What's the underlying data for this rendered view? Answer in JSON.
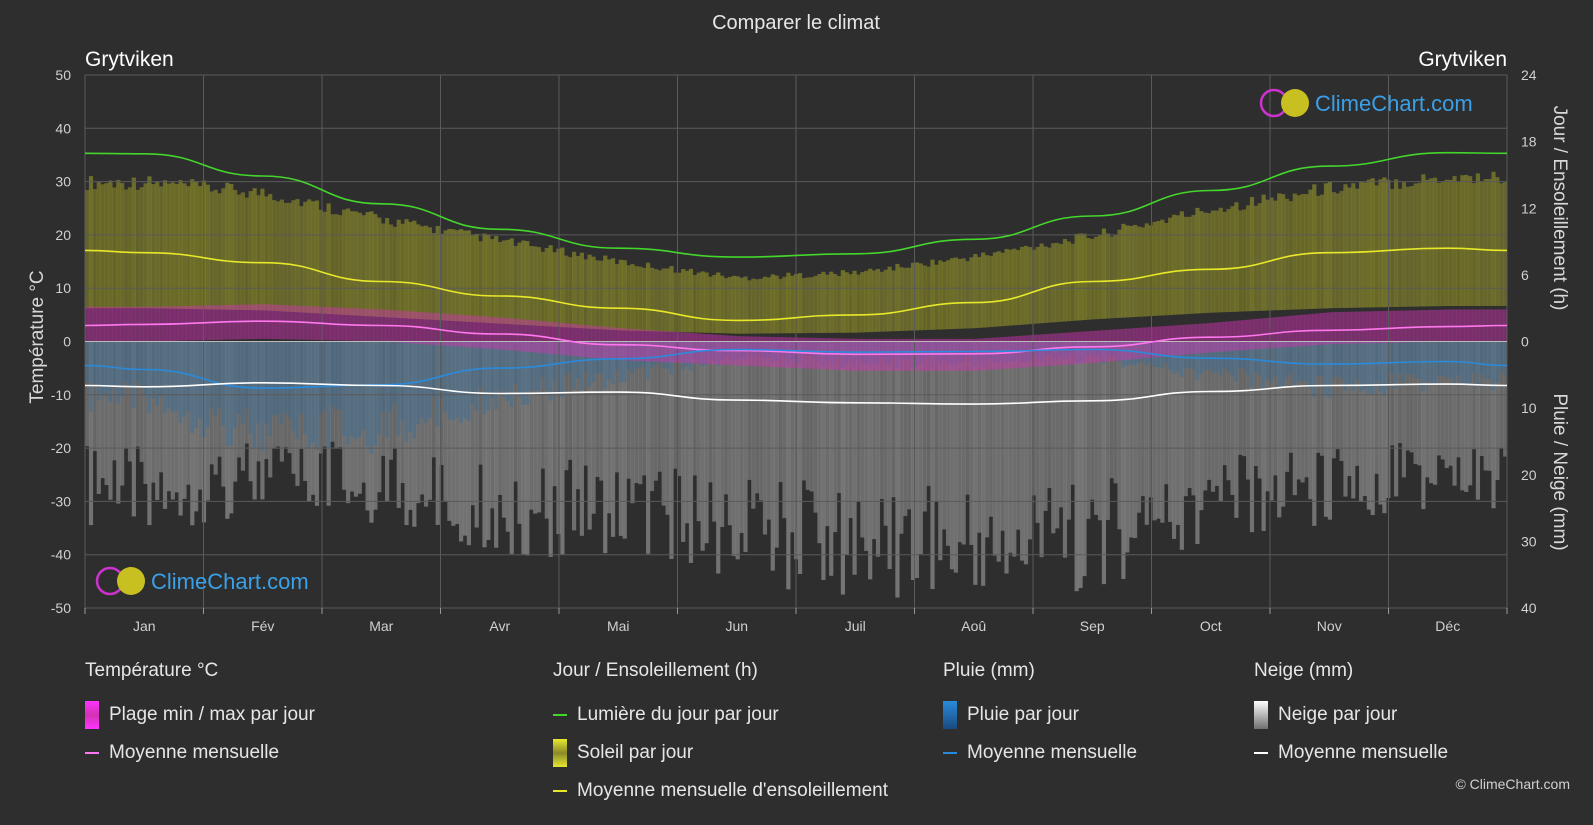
{
  "header": {
    "title": "Comparer le climat",
    "city_left": "Grytviken",
    "city_right": "Grytviken"
  },
  "brand": {
    "logo_text": "ClimeChart.com",
    "copyright": "© ClimeChart.com"
  },
  "colors": {
    "background": "#2e2e2e",
    "grid": "#5a5a5a",
    "daylight": "#44d62c",
    "sunshine_line": "#e8e82a",
    "temp_mean": "#ff77ee",
    "rain_mean": "#2a8bdc",
    "snow_mean": "#ffffff",
    "temp_band": "#d233b4",
    "sun_band": "#9a9a2a",
    "rain_band": "#2a6aa0",
    "snow_band": "#9a9a9a",
    "logo_text": "#3aa0e8"
  },
  "legend": {
    "temperature": {
      "title": "Température °C",
      "items": [
        {
          "label": "Plage min / max par jour",
          "icon": "magenta-bar"
        },
        {
          "label": "Moyenne mensuelle",
          "icon": "pink-line"
        }
      ]
    },
    "sunshine": {
      "title": "Jour / Ensoleillement (h)",
      "items": [
        {
          "label": "Lumière du jour par jour",
          "icon": "green-line"
        },
        {
          "label": "Soleil par jour",
          "icon": "yellow-bar"
        },
        {
          "label": "Moyenne mensuelle d'ensoleillement",
          "icon": "yellow-line"
        }
      ]
    },
    "rain": {
      "title": "Pluie (mm)",
      "items": [
        {
          "label": "Pluie par jour",
          "icon": "blue-bar"
        },
        {
          "label": "Moyenne mensuelle",
          "icon": "blue-line"
        }
      ]
    },
    "snow": {
      "title": "Neige (mm)",
      "items": [
        {
          "label": "Neige par jour",
          "icon": "white-bar"
        },
        {
          "label": "Moyenne mensuelle",
          "icon": "white-line"
        }
      ]
    }
  },
  "chart_data": {
    "type": "line",
    "title": "Comparer le climat",
    "categories": [
      "Jan",
      "Fév",
      "Mar",
      "Avr",
      "Mai",
      "Jun",
      "Juil",
      "Aoû",
      "Sep",
      "Oct",
      "Nov",
      "Déc"
    ],
    "axes": {
      "left": {
        "label": "Température °C",
        "min": -50,
        "max": 50,
        "ticks": [
          50,
          40,
          30,
          20,
          10,
          0,
          -10,
          -20,
          -30,
          -40,
          -50
        ]
      },
      "right_top": {
        "label": "Jour / Ensoleillement (h)",
        "min": 0,
        "max": 24,
        "ticks": [
          24,
          18,
          12,
          6,
          0
        ]
      },
      "right_bottom": {
        "label": "Pluie / Neige (mm)",
        "min": 0,
        "max": 40,
        "ticks": [
          0,
          10,
          20,
          30,
          40
        ]
      }
    },
    "grid": true,
    "series": [
      {
        "name": "Lumière du jour par jour",
        "axis": "hours",
        "values": [
          16.9,
          14.9,
          12.4,
          10.1,
          8.4,
          7.6,
          7.9,
          9.2,
          11.3,
          13.6,
          15.8,
          17.0
        ]
      },
      {
        "name": "Moyenne mensuelle d'ensoleillement",
        "axis": "hours",
        "values": [
          8.0,
          7.1,
          5.4,
          4.1,
          3.0,
          1.9,
          2.4,
          3.5,
          5.4,
          6.5,
          8.0,
          8.4
        ]
      },
      {
        "name": "Moyenne mensuelle (température)",
        "axis": "temp",
        "values": [
          3.2,
          3.8,
          3.0,
          1.4,
          -0.6,
          -1.7,
          -2.4,
          -2.3,
          -1.0,
          0.8,
          2.1,
          2.8
        ]
      },
      {
        "name": "Moyenne mensuelle (pluie)",
        "axis": "mm",
        "values": [
          4.2,
          7.0,
          6.5,
          4.0,
          2.6,
          1.2,
          1.6,
          1.5,
          1.2,
          2.5,
          3.4,
          3.0
        ]
      },
      {
        "name": "Moyenne mensuelle (neige)",
        "axis": "mm",
        "values": [
          6.8,
          6.2,
          6.6,
          7.8,
          7.6,
          8.8,
          9.2,
          9.4,
          8.9,
          7.5,
          6.6,
          6.4
        ]
      }
    ],
    "bands": {
      "temp_range": {
        "min": [
          0.0,
          0.5,
          0.0,
          -1.5,
          -3.5,
          -4.5,
          -5.5,
          -5.5,
          -4.0,
          -2.0,
          -0.5,
          0.0
        ],
        "max": [
          6.5,
          7.0,
          6.0,
          4.5,
          2.5,
          1.0,
          0.5,
          0.5,
          2.0,
          3.5,
          5.5,
          6.0
        ]
      },
      "sunshine_range": {
        "min": [
          3.0,
          2.8,
          2.2,
          1.6,
          1.0,
          0.7,
          0.8,
          1.2,
          2.0,
          2.6,
          3.0,
          3.2
        ],
        "max": [
          15.0,
          14.0,
          11.5,
          9.5,
          7.5,
          6.0,
          6.5,
          8.0,
          10.0,
          12.5,
          14.5,
          15.5
        ]
      }
    }
  }
}
